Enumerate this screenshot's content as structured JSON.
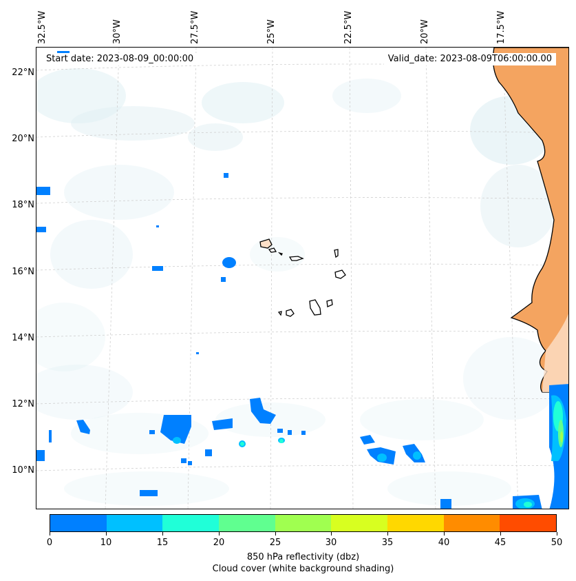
{
  "map": {
    "start_label": "Start date: 2023-08-09_00:00:00",
    "valid_label": "Valid_date: 2023-08-09T06:00:00.00",
    "lon_labels": [
      "32.5°W",
      "30°W",
      "27.5°W",
      "25°W",
      "22.5°W",
      "20°W",
      "17.5°W"
    ],
    "lat_labels": [
      "22°N",
      "20°N",
      "18°N",
      "16°N",
      "14°N",
      "12°N",
      "10°N"
    ],
    "ocean_color": "#ffffff",
    "land_color": "#f4a460",
    "cloud_color": "#d8ecf2",
    "coastline_color": "#000000"
  },
  "colorbar": {
    "ticks": [
      "0",
      "10",
      "15",
      "20",
      "25",
      "30",
      "35",
      "40",
      "45",
      "50"
    ],
    "colors": [
      "#0080ff",
      "#00c0ff",
      "#20ffd8",
      "#60ff90",
      "#a0ff50",
      "#d8ff20",
      "#ffd800",
      "#ff8c00",
      "#ff4c00"
    ],
    "title": "850 hPa reflectivity (dbz)",
    "subtitle": "Cloud cover (white background shading)"
  }
}
